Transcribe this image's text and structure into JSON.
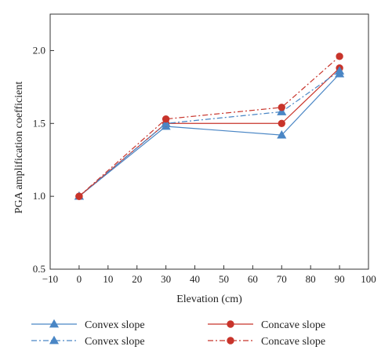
{
  "chart_data": {
    "type": "line",
    "xlabel": "Elevation (cm)",
    "ylabel": "PGA amplification coefficient",
    "xlim": [
      -10,
      100
    ],
    "ylim": [
      0.5,
      2.25
    ],
    "xticks": [
      -10,
      0,
      10,
      20,
      30,
      40,
      50,
      60,
      70,
      80,
      90,
      100
    ],
    "yticks": [
      0.5,
      1.0,
      1.5,
      2.0
    ],
    "ytick_labels": [
      "0.5",
      "1.0",
      "1.5",
      "2.0"
    ],
    "x": [
      0,
      30,
      70,
      90
    ],
    "series": [
      {
        "name": "Convex slope",
        "values": [
          1.0,
          1.48,
          1.42,
          1.84
        ],
        "color": "#4a86c5",
        "line": "solid",
        "marker": "triangle"
      },
      {
        "name": "Concave slope",
        "values": [
          1.0,
          1.5,
          1.5,
          1.88
        ],
        "color": "#c8342b",
        "line": "solid",
        "marker": "circle"
      },
      {
        "name": "Convex slope",
        "values": [
          1.0,
          1.5,
          1.58,
          1.86
        ],
        "color": "#4a86c5",
        "line": "dashdot",
        "marker": "triangle"
      },
      {
        "name": "Concave slope",
        "values": [
          1.0,
          1.53,
          1.61,
          1.96
        ],
        "color": "#c8342b",
        "line": "dashdot",
        "marker": "circle"
      }
    ],
    "legend_position": "bottom"
  }
}
